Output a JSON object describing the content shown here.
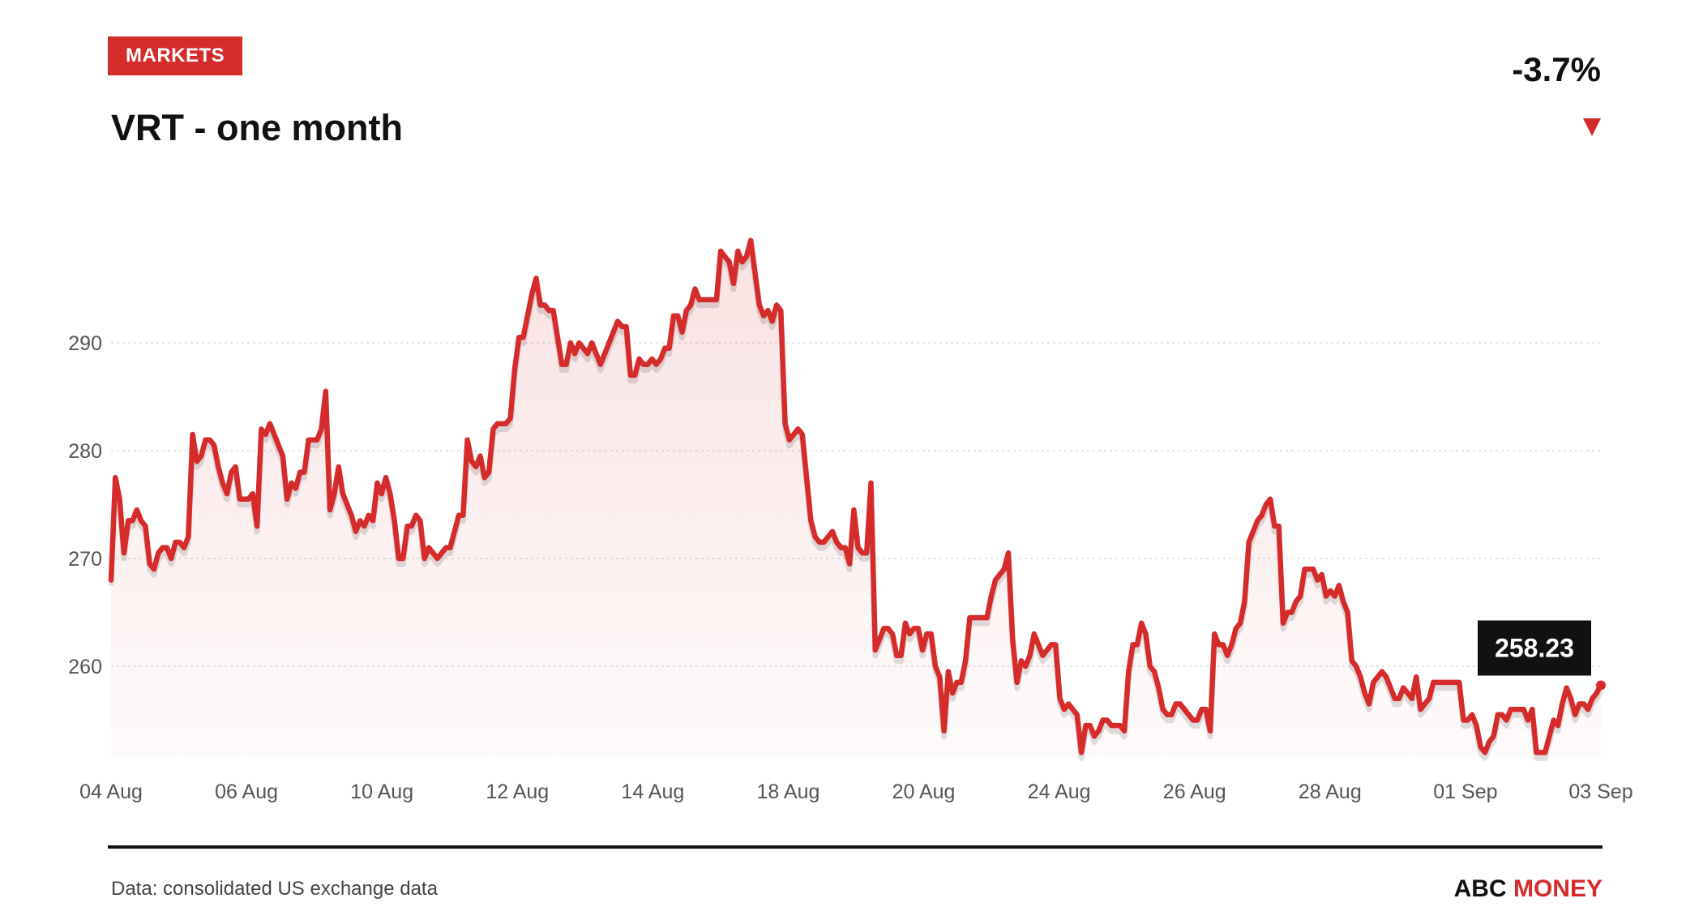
{
  "header": {
    "badge": "MARKETS",
    "title": "VRT - one month",
    "change": "-3.7%",
    "direction_icon": "down-triangle-icon"
  },
  "footer": {
    "source": "Data: consolidated US exchange data",
    "brand_main": "ABC",
    "brand_accent": "MONEY"
  },
  "colors": {
    "accent": "#d62b2b",
    "line": "#d62b2b",
    "text": "#111111",
    "grid": "#dddddd"
  },
  "chart_data": {
    "type": "area",
    "title": "VRT - one month",
    "xlabel": "",
    "ylabel": "",
    "ylim": [
      251.5,
      300
    ],
    "yticks": [
      260,
      270,
      280,
      290
    ],
    "grid": true,
    "x_tick_labels": [
      "04 Aug",
      "06 Aug",
      "10 Aug",
      "12 Aug",
      "14 Aug",
      "18 Aug",
      "20 Aug",
      "24 Aug",
      "26 Aug",
      "28 Aug",
      "01 Sep",
      "03 Sep"
    ],
    "last_value_label": "258.23",
    "series": [
      {
        "values": [
          268,
          277.5,
          275.5,
          270.5,
          273.5,
          273.5,
          274.5,
          273.5,
          273,
          269.5,
          269,
          270.5,
          271,
          271,
          270,
          271.5,
          271.5,
          271,
          272,
          281.5,
          279,
          279.5,
          281,
          281,
          280.5,
          278.5,
          277,
          276,
          278,
          278.5,
          275.5,
          275.5,
          275.5,
          276,
          273,
          282,
          281.5,
          282.5,
          281.5,
          280.5,
          279.5,
          275.5,
          277,
          276.5,
          278,
          278,
          281,
          281,
          281,
          282,
          285.5,
          274.5,
          276,
          278.5,
          276,
          275,
          274,
          272.5,
          273.5,
          273,
          274,
          273.5,
          277,
          276,
          277.5,
          276,
          273.5,
          270,
          270,
          273,
          273,
          274,
          273.5,
          270,
          271,
          270.5,
          270,
          270.5,
          271,
          271,
          272.5,
          274,
          274,
          281,
          279,
          278.5,
          279.5,
          277.5,
          278,
          282,
          282.5,
          282.5,
          282.5,
          283,
          287.5,
          290.5,
          290.5,
          292.5,
          294.5,
          296,
          293.5,
          293.5,
          293,
          293,
          290.5,
          288,
          288,
          290,
          289,
          290,
          289.5,
          289,
          290,
          289,
          288,
          289,
          290,
          291,
          292,
          291.5,
          291.5,
          287,
          287,
          288.5,
          288,
          288,
          288.5,
          288,
          288.5,
          289.5,
          289.5,
          292.5,
          292.5,
          291,
          293,
          293.5,
          295,
          294,
          294,
          294,
          294,
          294,
          298.5,
          298,
          297.5,
          295.5,
          298.5,
          297.5,
          298,
          299.5,
          296.5,
          293.5,
          292.5,
          293,
          292,
          293.5,
          293,
          282.5,
          281,
          281.5,
          282,
          281.5,
          277.5,
          273.5,
          272,
          271.5,
          271.5,
          272,
          272.5,
          271.5,
          271,
          271,
          269.5,
          274.5,
          271,
          270.5,
          270.5,
          277,
          261.5,
          262.5,
          263.5,
          263.5,
          263,
          261,
          261,
          264,
          263,
          263.5,
          263.5,
          261.5,
          263,
          263,
          260,
          259,
          254,
          259.5,
          257.5,
          258.5,
          258.5,
          260.5,
          264.5,
          264.5,
          264.5,
          264.5,
          264.5,
          266.5,
          268,
          268.5,
          269,
          270.5,
          262.5,
          258.5,
          260.5,
          260,
          261,
          263,
          262,
          261,
          261.5,
          262,
          262,
          257,
          256,
          256.5,
          256,
          255.5,
          252,
          254.5,
          254.5,
          253.5,
          254,
          255,
          255,
          254.5,
          254.5,
          254.5,
          254,
          259.5,
          262,
          262,
          264,
          263,
          260,
          259.5,
          258,
          256,
          255.5,
          255.5,
          256.5,
          256.5,
          256,
          255.5,
          255,
          255,
          256,
          256,
          254,
          263,
          262,
          262,
          261,
          262,
          263.5,
          264,
          266,
          271.5,
          272.5,
          273.5,
          274,
          275,
          275.5,
          273,
          273,
          264,
          265,
          265,
          266,
          266.5,
          269,
          269,
          269,
          268,
          268.5,
          266.5,
          267,
          266.5,
          267.5,
          266,
          265,
          260.5,
          260,
          259,
          257.5,
          256.5,
          258.5,
          259,
          259.5,
          259,
          258,
          257,
          257,
          258,
          257.5,
          257,
          259,
          256,
          256.5,
          257,
          258.5,
          258.5,
          258.5,
          258.5,
          258.5,
          258.5,
          258.5,
          255,
          255,
          255.5,
          254.5,
          252.5,
          252,
          253,
          253.5,
          255.5,
          255.5,
          255,
          256,
          256,
          256,
          256,
          255,
          256,
          252,
          252,
          252,
          253.5,
          255,
          254.5,
          256.5,
          258,
          257,
          255.5,
          256.5,
          256.5,
          256,
          257,
          257.5,
          258.23
        ]
      }
    ]
  }
}
